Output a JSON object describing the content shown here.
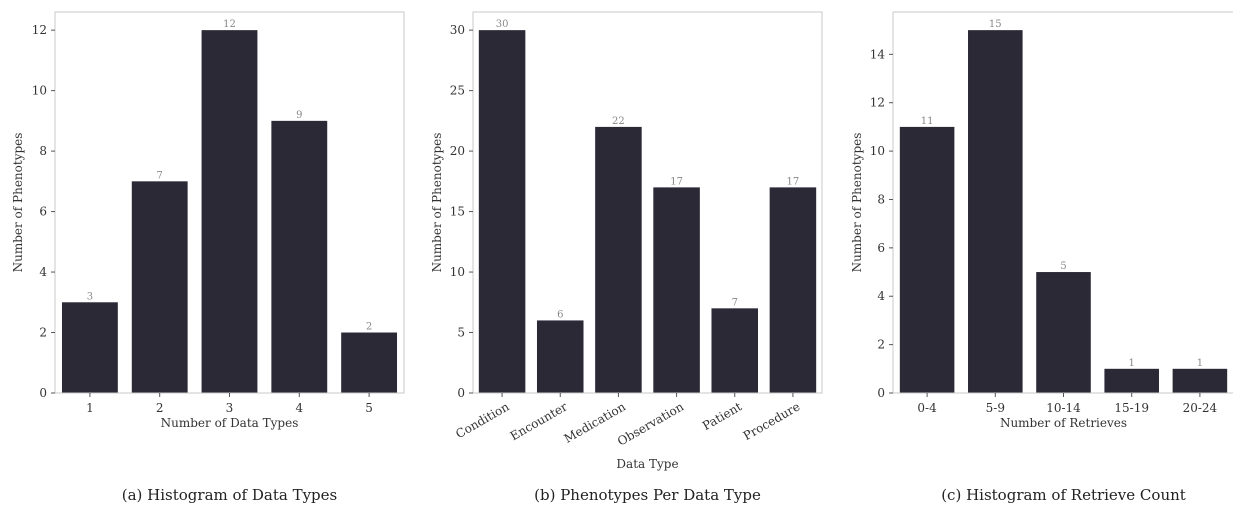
{
  "colors": {
    "bar": "#2a2935",
    "frame": "#c8c8c8",
    "data_label": "#888888"
  },
  "chart_data": [
    {
      "type": "bar",
      "title": "(a) Histogram of Data Types",
      "xlabel": "Number of Data Types",
      "ylabel": "Number of Phenotypes",
      "categories": [
        "1",
        "2",
        "3",
        "4",
        "5"
      ],
      "values": [
        3,
        7,
        12,
        9,
        2
      ],
      "ylim": [
        0,
        12.6
      ],
      "yticks": [
        0,
        2,
        4,
        6,
        8,
        10,
        12
      ],
      "xtick_rotation": 0,
      "grid": false
    },
    {
      "type": "bar",
      "title": "(b) Phenotypes Per Data Type",
      "xlabel": "Data Type",
      "ylabel": "Number of Phenotypes",
      "categories": [
        "Condition",
        "Encounter",
        "Medication",
        "Observation",
        "Patient",
        "Procedure"
      ],
      "values": [
        30,
        6,
        22,
        17,
        7,
        17
      ],
      "ylim": [
        0,
        31.5
      ],
      "yticks": [
        0,
        5,
        10,
        15,
        20,
        25,
        30
      ],
      "xtick_rotation": -30,
      "grid": false
    },
    {
      "type": "bar",
      "title": "(c) Histogram of Retrieve Count",
      "xlabel": "Number of Retrieves",
      "ylabel": "Number of Phenotypes",
      "categories": [
        "0-4",
        "5-9",
        "10-14",
        "15-19",
        "20-24"
      ],
      "values": [
        11,
        15,
        5,
        1,
        1
      ],
      "ylim": [
        0,
        15.75
      ],
      "yticks": [
        0,
        2,
        4,
        6,
        8,
        10,
        12,
        14
      ],
      "xtick_rotation": 0,
      "grid": false
    }
  ]
}
